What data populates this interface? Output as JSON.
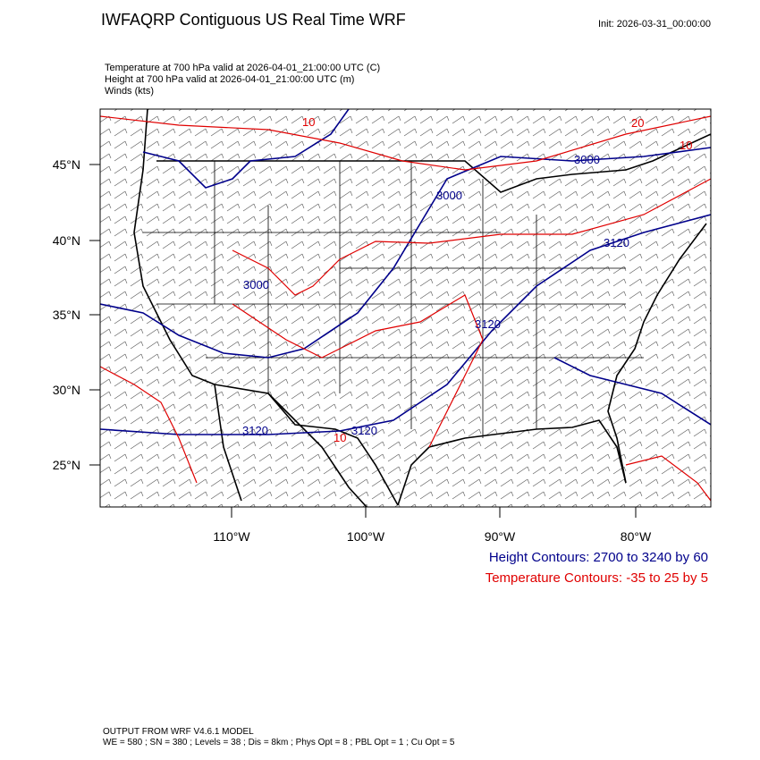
{
  "header": {
    "title": "IWFAQRP Contiguous US Real Time WRF",
    "init": "Init: 2026-03-31_00:00:00",
    "fields": [
      "Temperature at 700 hPa valid at 2026-04-01_21:00:00 UTC   (C)",
      "Height at 700 hPa valid at 2026-04-01_21:00:00 UTC   (m)",
      "Winds   (kts)"
    ]
  },
  "map": {
    "lat_labels": [
      "45°N",
      "40°N",
      "35°N",
      "30°N",
      "25°N"
    ],
    "lon_labels": [
      "110°W",
      "100°W",
      "90°W",
      "80°W"
    ],
    "contour_labels": [
      "10",
      "20",
      "10",
      "3000",
      "3000",
      "3120",
      "3000",
      "3120",
      "3120",
      "10",
      "3120"
    ]
  },
  "legend": {
    "height": "Height Contours: 2700 to 3240 by 60",
    "temperature": "Temperature Contours: -35 to 25 by 5"
  },
  "footer": [
    "OUTPUT FROM WRF V4.6.1 MODEL",
    "WE = 580 ; SN = 380 ; Levels = 38 ; Dis = 8km ; Phys Opt = 8 ; PBL Opt = 1 ; Cu Opt = 5"
  ]
}
